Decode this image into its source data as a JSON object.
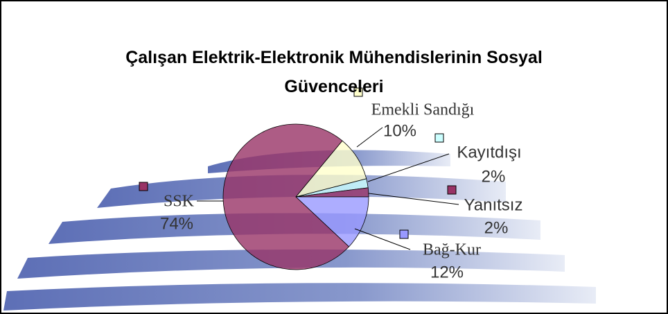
{
  "chart_data": {
    "type": "pie",
    "title": "Çalışan Elektrik-Elektronik Mühendislerinin Sosyal Güvenceleri",
    "categories": [
      "Emekli Sandığı",
      "Kayıtdışı",
      "Yanıtsız",
      "Bağ-Kur",
      "SSK"
    ],
    "values": [
      10,
      2,
      2,
      12,
      74
    ],
    "value_labels": [
      "10%",
      "2%",
      "2%",
      "12%",
      "74%"
    ],
    "colors": [
      "#ffffcc",
      "#ccffff",
      "#993366",
      "#9999ff",
      "#993366"
    ]
  }
}
